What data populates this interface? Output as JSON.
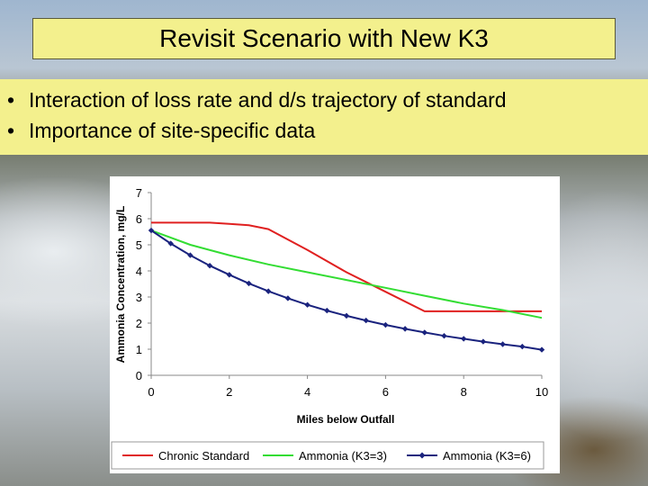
{
  "slide": {
    "title": "Revisit Scenario with New K3",
    "bullets": [
      "Interaction of loss rate and d/s trajectory of standard",
      "Importance of site-specific data"
    ]
  },
  "chart_data": {
    "type": "line",
    "title": "",
    "xlabel": "Miles below Outfall",
    "ylabel": "Ammonia Concentration, mg/L",
    "xlim": [
      0,
      10
    ],
    "ylim": [
      0,
      7
    ],
    "xticks": [
      0,
      2,
      4,
      6,
      8,
      10
    ],
    "yticks": [
      0,
      1,
      2,
      3,
      4,
      5,
      6,
      7
    ],
    "grid": false,
    "legend_position": "bottom",
    "series": [
      {
        "name": "Chronic Standard",
        "color": "#e02020",
        "marker": "none",
        "x": [
          0,
          1,
          1.5,
          2,
          2.5,
          3,
          4,
          5,
          6,
          7,
          8,
          9,
          10
        ],
        "y": [
          5.85,
          5.85,
          5.85,
          5.8,
          5.75,
          5.6,
          4.8,
          3.95,
          3.2,
          2.45,
          2.45,
          2.45,
          2.45
        ]
      },
      {
        "name": "Ammonia (K3=3)",
        "color": "#33dd33",
        "marker": "none",
        "x": [
          0,
          1,
          2,
          3,
          4,
          5,
          6,
          7,
          8,
          9,
          10
        ],
        "y": [
          5.55,
          5.0,
          4.6,
          4.25,
          3.95,
          3.65,
          3.35,
          3.05,
          2.75,
          2.5,
          2.2
        ]
      },
      {
        "name": "Ammonia (K3=6)",
        "color": "#1a237e",
        "marker": "diamond",
        "x": [
          0,
          0.5,
          1,
          1.5,
          2,
          2.5,
          3,
          3.5,
          4,
          4.5,
          5,
          5.5,
          6,
          6.5,
          7,
          7.5,
          8,
          8.5,
          9,
          9.5,
          10
        ],
        "y": [
          5.55,
          5.05,
          4.6,
          4.2,
          3.85,
          3.52,
          3.22,
          2.95,
          2.7,
          2.48,
          2.28,
          2.1,
          1.93,
          1.78,
          1.64,
          1.51,
          1.4,
          1.29,
          1.19,
          1.1,
          0.98
        ]
      }
    ]
  }
}
